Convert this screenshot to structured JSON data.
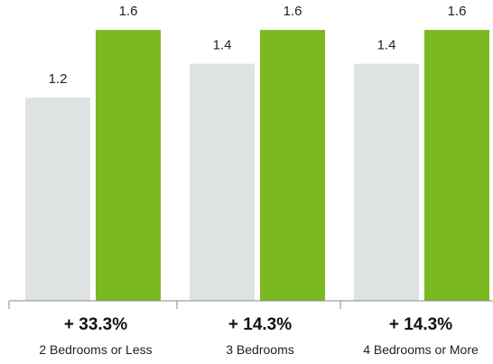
{
  "chart_data": {
    "type": "bar",
    "categories": [
      "2 Bedrooms or Less",
      "3 Bedrooms",
      "4 Bedrooms or More"
    ],
    "series": [
      {
        "values": [
          1.2,
          1.4,
          1.4
        ],
        "color": "#dfe2e3"
      },
      {
        "values": [
          1.6,
          1.6,
          1.6
        ],
        "color": "#7aba20"
      }
    ],
    "value_labels": [
      [
        "1.2",
        "1.4",
        "1.4"
      ],
      [
        "1.6",
        "1.6",
        "1.6"
      ]
    ],
    "changes": [
      "+ 33.3%",
      "+ 14.3%",
      "+ 14.3%"
    ],
    "ylim": [
      0,
      1.75
    ],
    "grid": false,
    "title": "",
    "xlabel": "",
    "ylabel": ""
  }
}
